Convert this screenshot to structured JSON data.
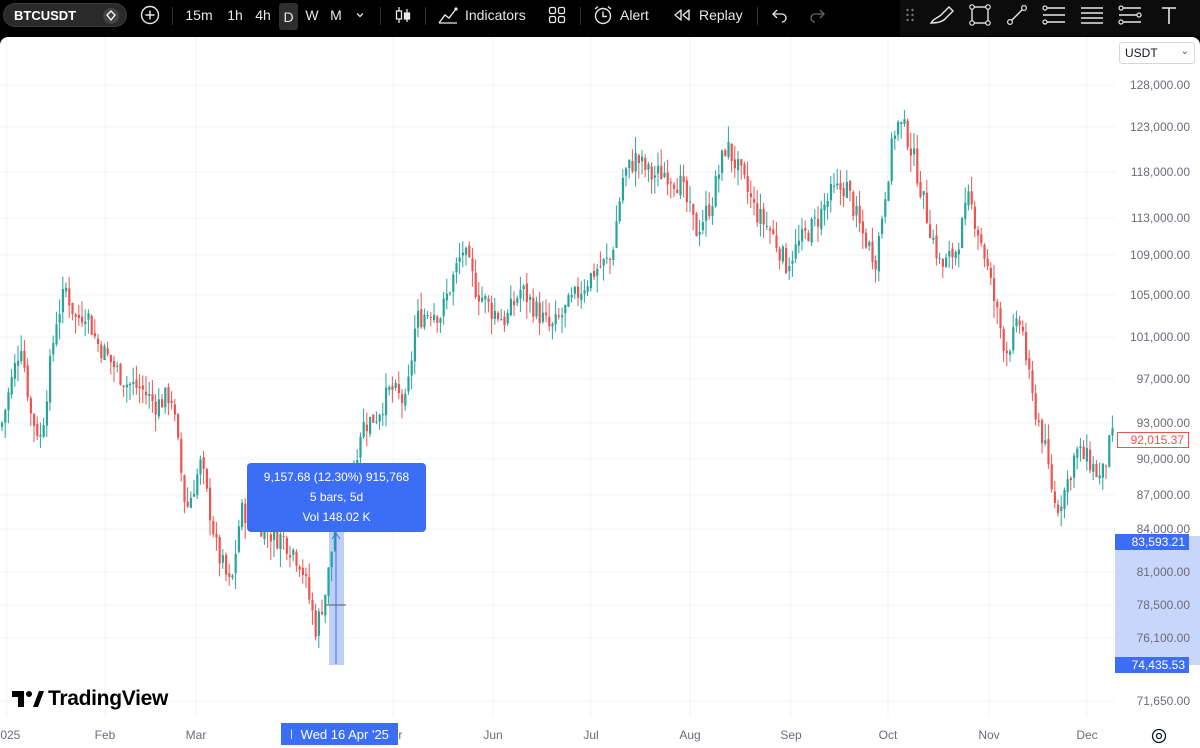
{
  "toolbar": {
    "symbol": "BTCUSDT",
    "intervals": [
      "15m",
      "1h",
      "4h",
      "D",
      "W",
      "M"
    ],
    "active_interval": "D",
    "indicators_label": "Indicators",
    "alert_label": "Alert",
    "replay_label": "Replay"
  },
  "chart": {
    "currency": "USDT",
    "price_labels": [
      "128,000.00",
      "123,000.00",
      "118,000.00",
      "113,000.00",
      "109,000.00",
      "105,000.00",
      "101,000.00",
      "97,000.00",
      "93,000.00",
      "90,000.00",
      "87,000.00",
      "84,000.00",
      "81,000.00",
      "78,500.00",
      "76,100.00",
      "74,435.53",
      "71,650.00"
    ],
    "time_labels": [
      "2025",
      "Feb",
      "Mar",
      "Apr",
      "Jun",
      "Jul",
      "Aug",
      "Sep",
      "Oct",
      "Nov",
      "Dec"
    ],
    "last_price": "92,015.37",
    "range_high": "83,593.21",
    "range_low": "74,435.53",
    "crosshair_time": "Wed 16 Apr '25",
    "measure": {
      "line1": "9,157.68 (12.30%) 915,768",
      "line2": "5 bars, 5d",
      "line3": "Vol 148.02 K"
    },
    "brand": "TradingView",
    "colors": {
      "up": "#26a69a",
      "down": "#ef5350",
      "accent": "#3b6ef5"
    }
  },
  "chart_data": {
    "type": "candlestick",
    "x_labels": [
      "2025",
      "Feb",
      "Mar",
      "Apr",
      "Jun",
      "Jul",
      "Aug",
      "Sep",
      "Oct",
      "Nov",
      "Dec"
    ],
    "y_labels": [
      "128,000.00",
      "123,000.00",
      "118,000.00",
      "113,000.00",
      "109,000.00",
      "105,000.00",
      "101,000.00",
      "97,000.00",
      "93,000.00",
      "90,000.00",
      "87,000.00",
      "84,000.00",
      "81,000.00",
      "78,500.00",
      "76,100.00",
      "71,650.00"
    ],
    "path_close": [
      [
        0,
        93000
      ],
      [
        10,
        97000
      ],
      [
        20,
        101000
      ],
      [
        30,
        94000
      ],
      [
        40,
        92000
      ],
      [
        55,
        103000
      ],
      [
        65,
        106000
      ],
      [
        75,
        103000
      ],
      [
        85,
        104000
      ],
      [
        95,
        101000
      ],
      [
        110,
        99000
      ],
      [
        125,
        97000
      ],
      [
        140,
        96500
      ],
      [
        155,
        95000
      ],
      [
        170,
        96000
      ],
      [
        185,
        86000
      ],
      [
        200,
        90000
      ],
      [
        215,
        83000
      ],
      [
        230,
        80000
      ],
      [
        240,
        86000
      ],
      [
        255,
        85000
      ],
      [
        270,
        84000
      ],
      [
        285,
        83500
      ],
      [
        300,
        82000
      ],
      [
        315,
        77000
      ],
      [
        325,
        80000
      ],
      [
        335,
        85000
      ],
      [
        345,
        86000
      ],
      [
        360,
        93000
      ],
      [
        375,
        94000
      ],
      [
        390,
        96500
      ],
      [
        405,
        95000
      ],
      [
        415,
        103000
      ],
      [
        430,
        104000
      ],
      [
        440,
        103500
      ],
      [
        450,
        106500
      ],
      [
        462,
        110000
      ],
      [
        475,
        106000
      ],
      [
        490,
        104000
      ],
      [
        505,
        103000
      ],
      [
        520,
        106000
      ],
      [
        535,
        104000
      ],
      [
        550,
        102000
      ],
      [
        565,
        104000
      ],
      [
        580,
        106000
      ],
      [
        595,
        108000
      ],
      [
        610,
        109000
      ],
      [
        622,
        118000
      ],
      [
        635,
        120000
      ],
      [
        650,
        118000
      ],
      [
        665,
        118500
      ],
      [
        680,
        117000
      ],
      [
        695,
        112000
      ],
      [
        710,
        115000
      ],
      [
        725,
        121500
      ],
      [
        740,
        118000
      ],
      [
        755,
        114000
      ],
      [
        770,
        112000
      ],
      [
        785,
        108500
      ],
      [
        800,
        111000
      ],
      [
        815,
        113000
      ],
      [
        830,
        116000
      ],
      [
        845,
        117000
      ],
      [
        860,
        112000
      ],
      [
        875,
        109000
      ],
      [
        885,
        117000
      ],
      [
        895,
        124000
      ],
      [
        905,
        123000
      ],
      [
        915,
        119000
      ],
      [
        925,
        114000
      ],
      [
        940,
        108000
      ],
      [
        955,
        110000
      ],
      [
        968,
        115500
      ],
      [
        980,
        111000
      ],
      [
        995,
        104000
      ],
      [
        1005,
        100000
      ],
      [
        1020,
        103000
      ],
      [
        1030,
        96000
      ],
      [
        1042,
        92000
      ],
      [
        1055,
        86000
      ],
      [
        1065,
        88000
      ],
      [
        1075,
        91000
      ],
      [
        1090,
        90000
      ],
      [
        1100,
        88500
      ],
      [
        1110,
        92000
      ]
    ]
  }
}
